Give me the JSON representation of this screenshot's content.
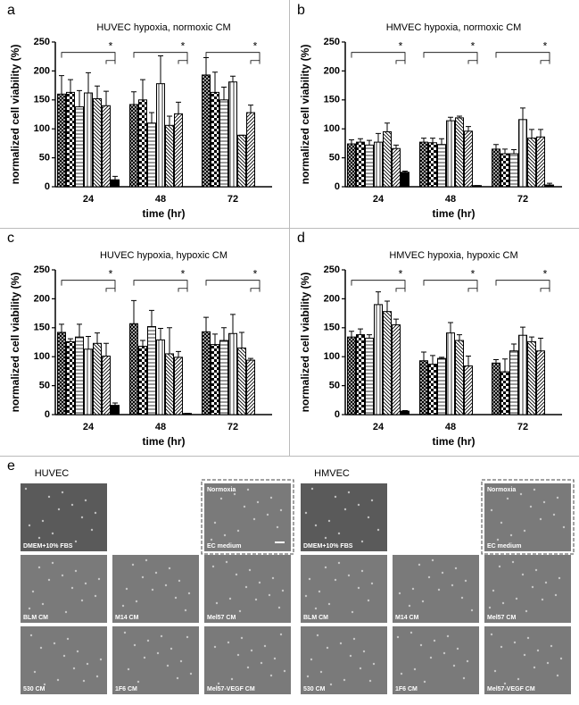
{
  "chart_data": [
    {
      "type": "bar",
      "panel": "a",
      "title": "HUVEC hypoxia, normoxic CM",
      "xlabel": "time (hr)",
      "ylabel": "normalized cell viability (%)",
      "categories": [
        "24",
        "48",
        "72"
      ],
      "ylim": [
        0,
        250
      ],
      "yticks": [
        0,
        50,
        100,
        150,
        200,
        250
      ],
      "series": [
        {
          "color": "#000000",
          "pattern": "cross",
          "values": [
            160,
            142,
            193
          ],
          "errors": [
            32,
            22,
            30
          ]
        },
        {
          "color": "#000000",
          "pattern": "checker",
          "values": [
            163,
            150,
            163
          ],
          "errors": [
            22,
            35,
            35
          ]
        },
        {
          "color": "#000000",
          "pattern": "hlines",
          "values": [
            138,
            110,
            150
          ],
          "errors": [
            28,
            18,
            22
          ]
        },
        {
          "color": "#000000",
          "pattern": "vlines",
          "values": [
            162,
            178,
            181
          ],
          "errors": [
            35,
            48,
            10
          ]
        },
        {
          "color": "#000000",
          "pattern": "bdiag",
          "values": [
            152,
            106,
            89
          ],
          "errors": [
            22,
            16,
            0
          ]
        },
        {
          "color": "#000000",
          "pattern": "fdiag",
          "values": [
            140,
            126,
            128
          ],
          "errors": [
            25,
            20,
            13
          ]
        },
        {
          "color": "#000000",
          "pattern": null,
          "values": [
            12,
            0,
            0
          ],
          "errors": [
            6,
            0,
            0
          ]
        }
      ],
      "annotations": [
        "*",
        "*",
        "*"
      ]
    },
    {
      "type": "bar",
      "panel": "b",
      "title": "HMVEC hypoxia, normoxic CM",
      "xlabel": "time (hr)",
      "ylabel": "normalized cell viability (%)",
      "categories": [
        "24",
        "48",
        "72"
      ],
      "ylim": [
        0,
        250
      ],
      "yticks": [
        0,
        50,
        100,
        150,
        200,
        250
      ],
      "series": [
        {
          "color": "#000000",
          "pattern": "cross",
          "values": [
            74,
            77,
            65
          ],
          "errors": [
            7,
            7,
            8
          ]
        },
        {
          "color": "#000000",
          "pattern": "checker",
          "values": [
            77,
            76,
            57
          ],
          "errors": [
            6,
            8,
            8
          ]
        },
        {
          "color": "#000000",
          "pattern": "hlines",
          "values": [
            72,
            73,
            57
          ],
          "errors": [
            8,
            10,
            7
          ]
        },
        {
          "color": "#000000",
          "pattern": "vlines",
          "values": [
            77,
            114,
            116
          ],
          "errors": [
            15,
            6,
            20
          ]
        },
        {
          "color": "#000000",
          "pattern": "bdiag",
          "values": [
            95,
            119,
            84
          ],
          "errors": [
            15,
            3,
            15
          ]
        },
        {
          "color": "#000000",
          "pattern": "fdiag",
          "values": [
            66,
            96,
            86
          ],
          "errors": [
            6,
            8,
            13
          ]
        },
        {
          "color": "#000000",
          "pattern": null,
          "values": [
            25,
            2,
            3
          ],
          "errors": [
            2,
            0,
            3
          ]
        }
      ],
      "annotations": [
        "*",
        "*",
        "*"
      ]
    },
    {
      "type": "bar",
      "panel": "c",
      "title": "HUVEC hypoxia, hypoxic CM",
      "xlabel": "time (hr)",
      "ylabel": "normalized cell viability (%)",
      "categories": [
        "24",
        "48",
        "72"
      ],
      "ylim": [
        0,
        250
      ],
      "yticks": [
        0,
        50,
        100,
        150,
        200,
        250
      ],
      "series": [
        {
          "color": "#000000",
          "pattern": "cross",
          "values": [
            142,
            157,
            143
          ],
          "errors": [
            14,
            40,
            25
          ]
        },
        {
          "color": "#000000",
          "pattern": "checker",
          "values": [
            126,
            118,
            121
          ],
          "errors": [
            5,
            10,
            18
          ]
        },
        {
          "color": "#000000",
          "pattern": "hlines",
          "values": [
            134,
            152,
            128
          ],
          "errors": [
            22,
            28,
            22
          ]
        },
        {
          "color": "#000000",
          "pattern": "vlines",
          "values": [
            113,
            129,
            140
          ],
          "errors": [
            22,
            20,
            33
          ]
        },
        {
          "color": "#000000",
          "pattern": "bdiag",
          "values": [
            123,
            105,
            115
          ],
          "errors": [
            18,
            45,
            27
          ]
        },
        {
          "color": "#000000",
          "pattern": "fdiag",
          "values": [
            101,
            99,
            94
          ],
          "errors": [
            22,
            10,
            3
          ]
        },
        {
          "color": "#000000",
          "pattern": null,
          "values": [
            16,
            2,
            0
          ],
          "errors": [
            4,
            0,
            0
          ]
        }
      ],
      "annotations": [
        "*",
        "*",
        "*"
      ]
    },
    {
      "type": "bar",
      "panel": "d",
      "title": "HMVEC hypoxia, hypoxic CM",
      "xlabel": "time (hr)",
      "ylabel": "normalized cell viability (%)",
      "categories": [
        "24",
        "48",
        "72"
      ],
      "ylim": [
        0,
        250
      ],
      "yticks": [
        0,
        50,
        100,
        150,
        200,
        250
      ],
      "series": [
        {
          "color": "#000000",
          "pattern": "cross",
          "values": [
            134,
            93,
            89
          ],
          "errors": [
            10,
            15,
            6
          ]
        },
        {
          "color": "#000000",
          "pattern": "checker",
          "values": [
            138,
            87,
            74
          ],
          "errors": [
            10,
            15,
            22
          ]
        },
        {
          "color": "#000000",
          "pattern": "hlines",
          "values": [
            132,
            97,
            110
          ],
          "errors": [
            6,
            2,
            12
          ]
        },
        {
          "color": "#000000",
          "pattern": "vlines",
          "values": [
            190,
            141,
            137
          ],
          "errors": [
            22,
            18,
            14
          ]
        },
        {
          "color": "#000000",
          "pattern": "bdiag",
          "values": [
            178,
            128,
            126
          ],
          "errors": [
            18,
            10,
            8
          ]
        },
        {
          "color": "#000000",
          "pattern": "fdiag",
          "values": [
            155,
            84,
            110
          ],
          "errors": [
            10,
            17,
            22
          ]
        },
        {
          "color": "#000000",
          "pattern": null,
          "values": [
            6,
            0,
            0
          ],
          "errors": [
            1,
            0,
            0
          ]
        }
      ],
      "annotations": [
        "*",
        "*",
        "*"
      ]
    }
  ],
  "micrographs": {
    "panel": "e",
    "groups": [
      {
        "title": "HUVEC",
        "images": [
          {
            "label": "DMEM+10% FBS",
            "row": 0,
            "col": 0
          },
          {
            "label": "EC medium",
            "tag": "Normoxia",
            "row": 0,
            "col": 2
          },
          {
            "label": "BLM CM",
            "row": 1,
            "col": 0
          },
          {
            "label": "M14 CM",
            "row": 1,
            "col": 1
          },
          {
            "label": "Mel57 CM",
            "row": 1,
            "col": 2
          },
          {
            "label": "530 CM",
            "row": 2,
            "col": 0
          },
          {
            "label": "1F6 CM",
            "row": 2,
            "col": 1
          },
          {
            "label": "Mel57-VEGF CM",
            "row": 2,
            "col": 2
          }
        ]
      },
      {
        "title": "HMVEC",
        "images": [
          {
            "label": "DMEM+10% FBS",
            "row": 0,
            "col": 0
          },
          {
            "label": "EC medium",
            "tag": "Normoxia",
            "row": 0,
            "col": 2
          },
          {
            "label": "BLM CM",
            "row": 1,
            "col": 0
          },
          {
            "label": "M14 CM",
            "row": 1,
            "col": 1
          },
          {
            "label": "Mel57 CM",
            "row": 1,
            "col": 2
          },
          {
            "label": "530 CM",
            "row": 2,
            "col": 0
          },
          {
            "label": "1F6 CM",
            "row": 2,
            "col": 1
          },
          {
            "label": "Mel57-VEGF CM",
            "row": 2,
            "col": 2
          }
        ]
      }
    ]
  }
}
